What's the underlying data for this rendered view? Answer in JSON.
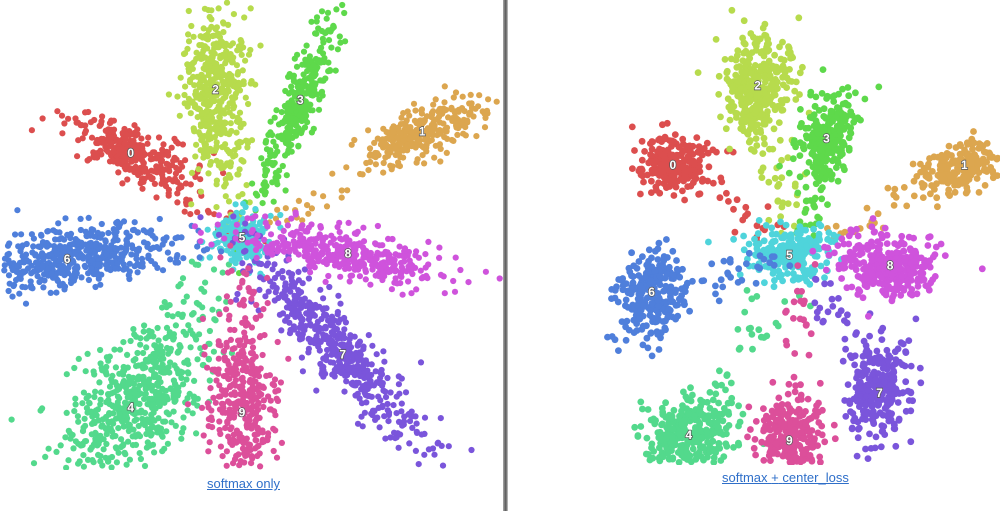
{
  "chart_data": [
    {
      "type": "scatter",
      "caption": "softmax only",
      "legend": "none",
      "grid": false,
      "series": [
        {
          "label": "0",
          "color": "#dc4e4e",
          "center": [
            -1.05,
            0.85
          ],
          "spread_along": 0.3,
          "spread_across": 0.11,
          "angle_deg": -25,
          "n": 340
        },
        {
          "label": "1",
          "color": "#dca64f",
          "center": [
            1.7,
            1.05
          ],
          "spread_along": 0.3,
          "spread_across": 0.12,
          "angle_deg": 25,
          "n": 300
        },
        {
          "label": "2",
          "color": "#b7db4d",
          "center": [
            -0.25,
            1.45
          ],
          "spread_along": 0.4,
          "spread_across": 0.15,
          "angle_deg": 88,
          "n": 460
        },
        {
          "label": "3",
          "color": "#5ed94b",
          "center": [
            0.55,
            1.35
          ],
          "spread_along": 0.48,
          "spread_across": 0.09,
          "angle_deg": 68,
          "n": 320
        },
        {
          "label": "4",
          "color": "#53d98c",
          "center": [
            -1.05,
            -1.55
          ],
          "spread_along": 0.48,
          "spread_across": 0.25,
          "angle_deg": 50,
          "n": 600
        },
        {
          "label": "5",
          "color": "#4fd4db",
          "center": [
            0.0,
            0.05
          ],
          "spread_along": 0.14,
          "spread_across": 0.12,
          "angle_deg": 0,
          "n": 230
        },
        {
          "label": "6",
          "color": "#4f7fdb",
          "center": [
            -1.65,
            -0.15
          ],
          "spread_along": 0.45,
          "spread_across": 0.15,
          "angle_deg": 10,
          "n": 480
        },
        {
          "label": "7",
          "color": "#7a55db",
          "center": [
            0.95,
            -1.05
          ],
          "spread_along": 0.62,
          "spread_across": 0.14,
          "angle_deg": -48,
          "n": 480
        },
        {
          "label": "8",
          "color": "#cf53dc",
          "center": [
            1.0,
            -0.1
          ],
          "spread_along": 0.5,
          "spread_across": 0.11,
          "angle_deg": -12,
          "n": 400
        },
        {
          "label": "9",
          "color": "#dc4f9a",
          "center": [
            0.0,
            -1.6
          ],
          "spread_along": 0.5,
          "spread_across": 0.16,
          "angle_deg": 90,
          "n": 420
        }
      ]
    },
    {
      "type": "scatter",
      "caption_parts": [
        "softmax",
        "+",
        "center_loss"
      ],
      "legend": "none",
      "grid": false,
      "series": [
        {
          "label": "0",
          "color": "#dc4e4e",
          "center": [
            -1.2,
            0.85
          ],
          "spread_along": 0.17,
          "spread_across": 0.13,
          "angle_deg": -10,
          "n": 260
        },
        {
          "label": "1",
          "color": "#dca64f",
          "center": [
            1.55,
            0.85
          ],
          "spread_along": 0.22,
          "spread_across": 0.11,
          "angle_deg": 20,
          "n": 240
        },
        {
          "label": "2",
          "color": "#b7db4d",
          "center": [
            -0.4,
            1.6
          ],
          "spread_along": 0.25,
          "spread_across": 0.16,
          "angle_deg": 80,
          "n": 360
        },
        {
          "label": "3",
          "color": "#5ed94b",
          "center": [
            0.25,
            1.1
          ],
          "spread_along": 0.22,
          "spread_across": 0.12,
          "angle_deg": 75,
          "n": 260
        },
        {
          "label": "4",
          "color": "#53d98c",
          "center": [
            -1.05,
            -1.7
          ],
          "spread_along": 0.22,
          "spread_across": 0.17,
          "angle_deg": 15,
          "n": 340
        },
        {
          "label": "5",
          "color": "#4fd4db",
          "center": [
            -0.1,
            0.0
          ],
          "spread_along": 0.19,
          "spread_across": 0.14,
          "angle_deg": 0,
          "n": 240
        },
        {
          "label": "6",
          "color": "#4f7fdb",
          "center": [
            -1.4,
            -0.35
          ],
          "spread_along": 0.21,
          "spread_across": 0.16,
          "angle_deg": 70,
          "n": 280
        },
        {
          "label": "7",
          "color": "#7a55db",
          "center": [
            0.75,
            -1.3
          ],
          "spread_along": 0.26,
          "spread_across": 0.13,
          "angle_deg": 80,
          "n": 300
        },
        {
          "label": "8",
          "color": "#cf53dc",
          "center": [
            0.85,
            -0.1
          ],
          "spread_along": 0.22,
          "spread_across": 0.15,
          "angle_deg": -5,
          "n": 300
        },
        {
          "label": "9",
          "color": "#dc4f9a",
          "center": [
            -0.1,
            -1.75
          ],
          "spread_along": 0.21,
          "spread_across": 0.15,
          "angle_deg": 90,
          "n": 300
        }
      ]
    }
  ]
}
